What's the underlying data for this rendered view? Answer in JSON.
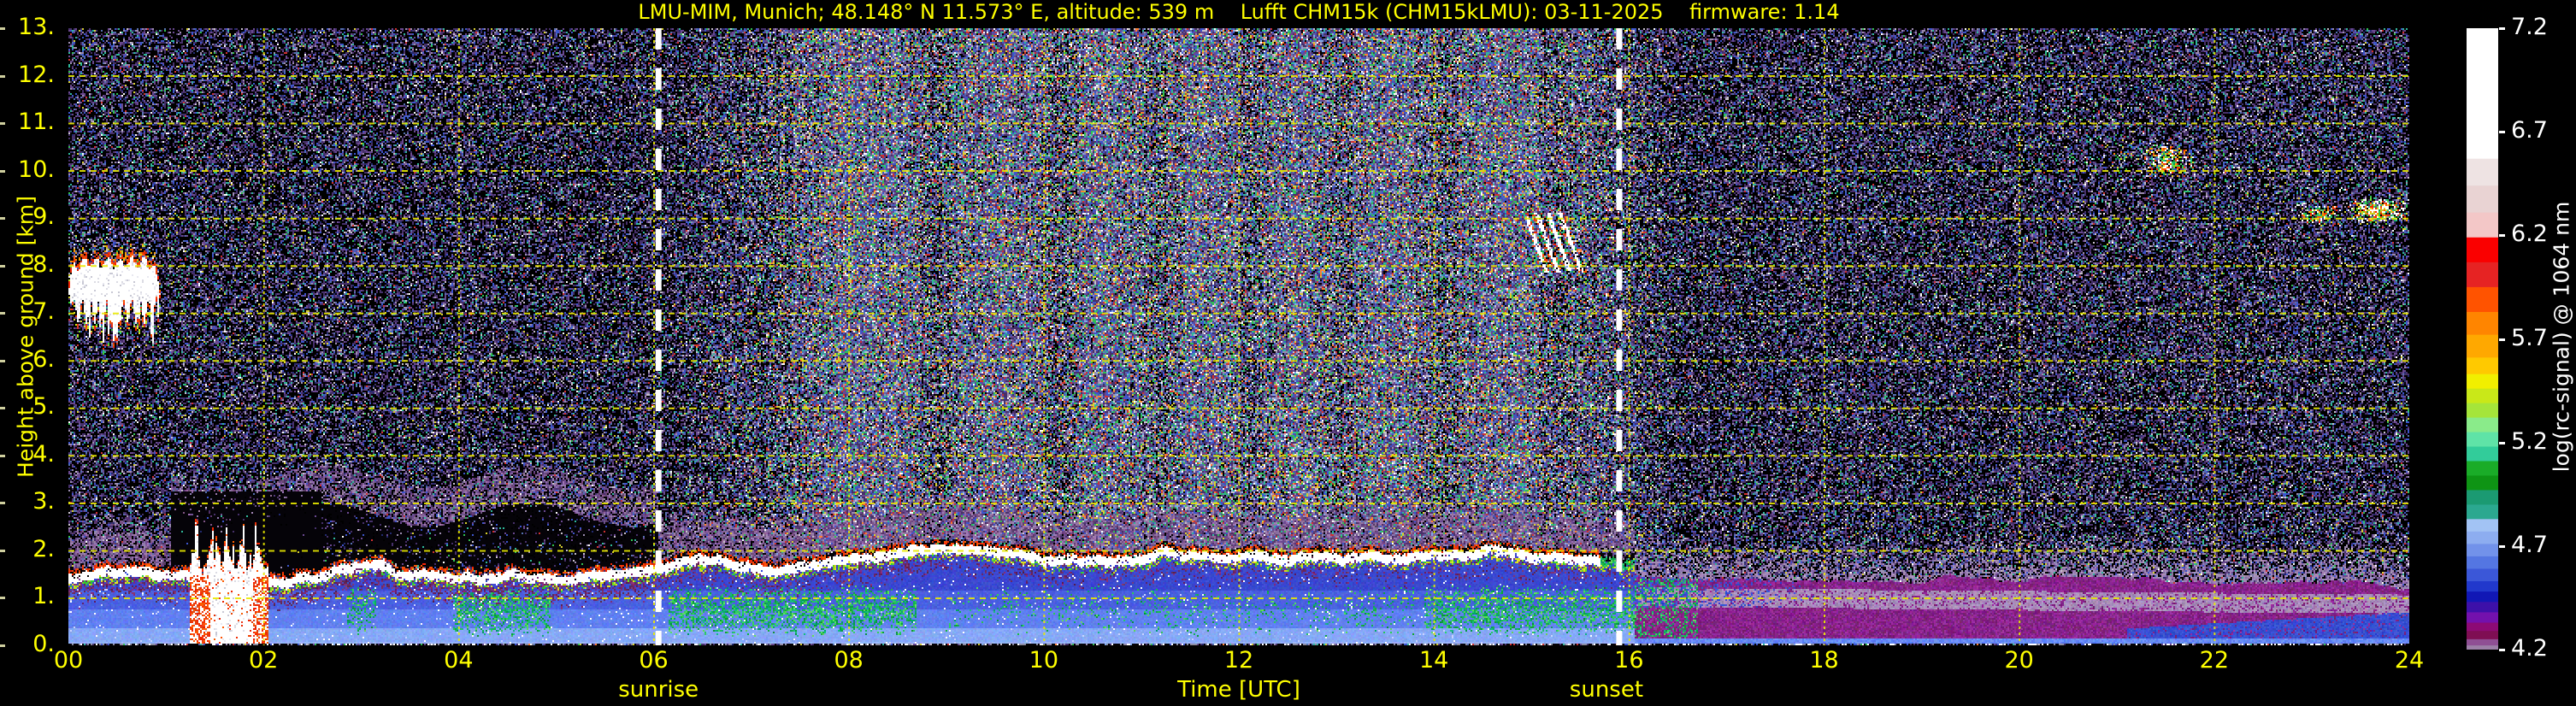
{
  "chart_data": {
    "type": "heatmap",
    "title": "LMU-MIM, Munich; 48.148° N 11.573° E, altitude: 539 m    Lufft CHM15k (CHM15kLMU): 03-11-2025    firmware: 1.14",
    "xlabel": "Time [UTC]",
    "ylabel": "Height above ground [km]",
    "xlim": [
      0,
      24
    ],
    "ylim": [
      0,
      13
    ],
    "x_ticks": {
      "values": [
        0,
        2,
        4,
        6,
        8,
        10,
        12,
        14,
        16,
        18,
        20,
        22,
        24
      ],
      "labels": [
        "00",
        "02",
        "04",
        "06",
        "08",
        "10",
        "12",
        "14",
        "16",
        "18",
        "20",
        "22",
        "24"
      ]
    },
    "y_ticks": {
      "values": [
        0,
        1,
        2,
        3,
        4,
        5,
        6,
        7,
        8,
        9,
        10,
        11,
        12,
        13
      ],
      "labels": [
        "0.",
        "1.",
        "2.",
        "3.",
        "4.",
        "5.",
        "6.",
        "7.",
        "8.",
        "9.",
        "10.",
        "11.",
        "12.",
        "13."
      ]
    },
    "grid": {
      "color": "#e8e800",
      "x_interval_h": 2,
      "y_interval_km": 1
    },
    "sun": {
      "sunrise_utc": 6.05,
      "sunset_utc": 15.9,
      "sunrise_label": "sunrise",
      "sunset_label": "sunset",
      "line_color": "#ffffff"
    },
    "colorbar": {
      "label": "log(rc-signal) @ 1064 nm",
      "vmin": 4.2,
      "vmax": 7.2,
      "tick_values": [
        7.2,
        6.7,
        6.2,
        5.7,
        5.2,
        4.7,
        4.2
      ],
      "tick_labels": [
        "7.2",
        "6.7",
        "6.2",
        "5.7",
        "5.2",
        "4.7",
        "4.2"
      ],
      "stops": [
        {
          "v": 7.2,
          "c": "#ffffff"
        },
        {
          "v": 6.57,
          "c": "#eee3e3"
        },
        {
          "v": 6.44,
          "c": "#e9d3d3"
        },
        {
          "v": 6.31,
          "c": "#f3c7c7"
        },
        {
          "v": 6.19,
          "c": "#fa0000"
        },
        {
          "v": 6.07,
          "c": "#e62323"
        },
        {
          "v": 5.95,
          "c": "#ff5300"
        },
        {
          "v": 5.83,
          "c": "#ff8500"
        },
        {
          "v": 5.72,
          "c": "#ffa800"
        },
        {
          "v": 5.61,
          "c": "#ffc900"
        },
        {
          "v": 5.53,
          "c": "#f1ef00"
        },
        {
          "v": 5.46,
          "c": "#c9e818"
        },
        {
          "v": 5.39,
          "c": "#a5e53a"
        },
        {
          "v": 5.32,
          "c": "#8aeb8a"
        },
        {
          "v": 5.25,
          "c": "#5fe3a7"
        },
        {
          "v": 5.18,
          "c": "#32cc9a"
        },
        {
          "v": 5.11,
          "c": "#1aac28"
        },
        {
          "v": 5.04,
          "c": "#0e9414"
        },
        {
          "v": 4.97,
          "c": "#1b9a72"
        },
        {
          "v": 4.9,
          "c": "#2ba890"
        },
        {
          "v": 4.83,
          "c": "#a2c3f4"
        },
        {
          "v": 4.77,
          "c": "#8dadf0"
        },
        {
          "v": 4.71,
          "c": "#7292ea"
        },
        {
          "v": 4.65,
          "c": "#5476e2"
        },
        {
          "v": 4.59,
          "c": "#3b57d8"
        },
        {
          "v": 4.53,
          "c": "#2138cc"
        },
        {
          "v": 4.48,
          "c": "#1117b5"
        },
        {
          "v": 4.43,
          "c": "#3d10a9"
        },
        {
          "v": 4.38,
          "c": "#7311ad"
        },
        {
          "v": 4.33,
          "c": "#8d0a75"
        },
        {
          "v": 4.29,
          "c": "#7f0e53"
        },
        {
          "v": 4.25,
          "c": "#8f4f94"
        },
        {
          "v": 4.22,
          "c": "#9d80a8"
        }
      ]
    },
    "features": {
      "aerosol_layer": {
        "cap_white_color": "#ffffff",
        "day_top_km": [
          [
            0,
            1.42
          ],
          [
            2,
            1.48
          ],
          [
            4,
            1.52
          ],
          [
            6,
            1.62
          ],
          [
            8,
            1.72
          ],
          [
            10,
            1.85
          ],
          [
            12,
            1.88
          ],
          [
            14,
            1.82
          ],
          [
            16.1,
            1.72
          ]
        ],
        "green_intervals_utc": [
          [
            2.85,
            3.15,
            0.35
          ],
          [
            3.95,
            4.95,
            0.6
          ],
          [
            6.15,
            8.7,
            0.6
          ],
          [
            9.0,
            13.8,
            0.12
          ],
          [
            13.9,
            16.35,
            0.55
          ]
        ],
        "evening_residual_top_km": [
          [
            16,
            1.5
          ],
          [
            24,
            1.25
          ]
        ]
      },
      "clouds": [
        {
          "t0": 0.0,
          "t1": 0.95,
          "h0": 6.9,
          "h1": 8.05,
          "kind": "thick"
        },
        {
          "t0": 1.25,
          "t1": 2.05,
          "h0": 0.0,
          "h1": 2.0,
          "kind": "precip"
        },
        {
          "t0": 14.95,
          "t1": 15.45,
          "h0": 7.9,
          "h1": 9.0,
          "kind": "slant"
        },
        {
          "t0": 20.95,
          "t1": 21.15,
          "h0": 10.2,
          "h1": 10.45,
          "kind": "wisp",
          "density": 0.3
        },
        {
          "t0": 21.25,
          "t1": 21.8,
          "h0": 9.85,
          "h1": 10.6,
          "kind": "wisp",
          "density": 0.55
        },
        {
          "t0": 22.85,
          "t1": 23.3,
          "h0": 8.85,
          "h1": 9.3,
          "kind": "wisp",
          "density": 0.5
        },
        {
          "t0": 23.35,
          "t1": 24.0,
          "h0": 8.85,
          "h1": 9.45,
          "kind": "wisp",
          "density": 0.75
        }
      ],
      "noise": {
        "night_density": 0.48,
        "day_density": 0.84,
        "day_start_utc": 6.2,
        "day_end_utc": 16.6
      }
    }
  }
}
